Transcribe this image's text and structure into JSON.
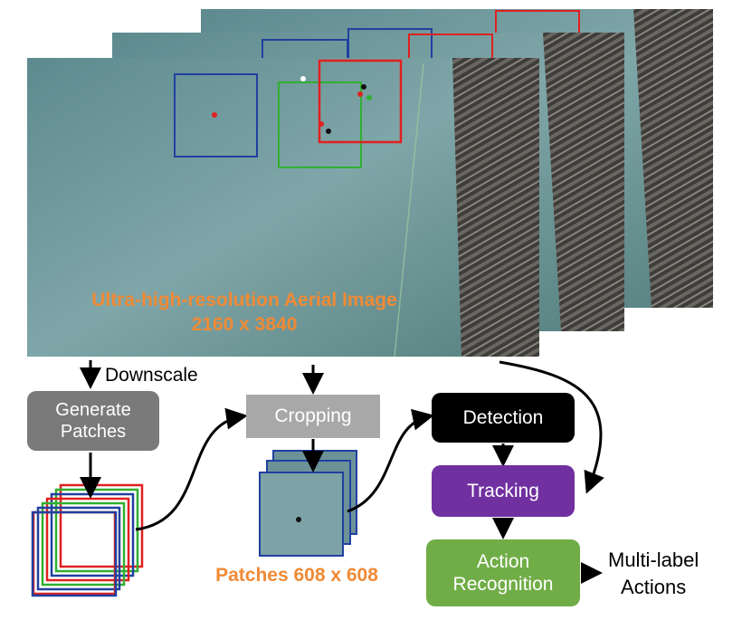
{
  "image_caption": {
    "line1": "Ultra-high-resolution Aerial Image",
    "line2": "2160 x 3840"
  },
  "downscale_label": "Downscale",
  "generate_patches": {
    "line1": "Generate",
    "line2": "Patches"
  },
  "cropping": "Cropping",
  "patches_label": "Patches 608 x 608",
  "detection": "Detection",
  "tracking": "Tracking",
  "action_recognition": {
    "line1": "Action",
    "line2": "Recognition"
  },
  "output": {
    "line1": "Multi-label",
    "line2": "Actions"
  },
  "colors": {
    "generate_patches_fill": "#7a7a7a",
    "cropping_fill": "#a8a8a8",
    "detection_fill": "#000000",
    "tracking_fill": "#7030a0",
    "action_recognition_fill": "#70ad47",
    "caption_orange": "#f08a35",
    "patch_red": "#e02020",
    "patch_green": "#30b030",
    "patch_blue": "#2040a0"
  }
}
